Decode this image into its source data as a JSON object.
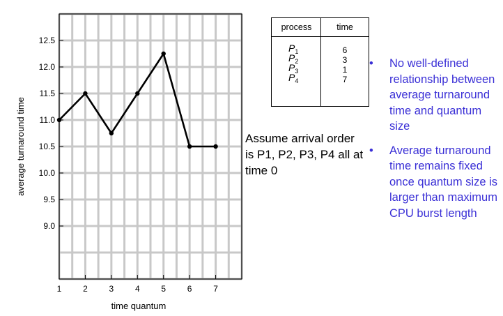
{
  "chart_data": {
    "type": "line",
    "xlabel": "time quantum",
    "ylabel": "average turnaround time",
    "x": [
      1,
      2,
      3,
      4,
      5,
      6,
      7
    ],
    "xticks": [
      "1",
      "2",
      "3",
      "4",
      "5",
      "6",
      "7"
    ],
    "yticks": [
      "9.0",
      "9.5",
      "10.0",
      "10.5",
      "11.0",
      "11.5",
      "12.0",
      "12.5"
    ],
    "yticks_values": [
      9.0,
      9.5,
      10.0,
      10.5,
      11.0,
      11.5,
      12.0,
      12.5
    ],
    "series": [
      {
        "values": [
          11.0,
          11.5,
          10.75,
          11.5,
          12.25,
          10.5,
          10.5
        ]
      }
    ],
    "xlim": [
      1,
      8
    ],
    "ylim": [
      8.0,
      13.0
    ],
    "grid": true,
    "line_color": "#000000",
    "grid_color": "#c8c8c8"
  },
  "table": {
    "headers": [
      "process",
      "time"
    ],
    "rows": [
      {
        "name": "P",
        "sub": "1",
        "time": "6"
      },
      {
        "name": "P",
        "sub": "2",
        "time": "3"
      },
      {
        "name": "P",
        "sub": "3",
        "time": "1"
      },
      {
        "name": "P",
        "sub": "4",
        "time": "7"
      }
    ]
  },
  "note": "Assume arrival order is P1, P2, P3, P4 all at time 0",
  "bullets": [
    "No well-defined relationship between average turnaround time and quantum size",
    "Average turnaround time remains fixed once quantum size is larger than maximum CPU burst length"
  ],
  "bullet_symbol": "•",
  "accent_color": "#3a2fd6"
}
